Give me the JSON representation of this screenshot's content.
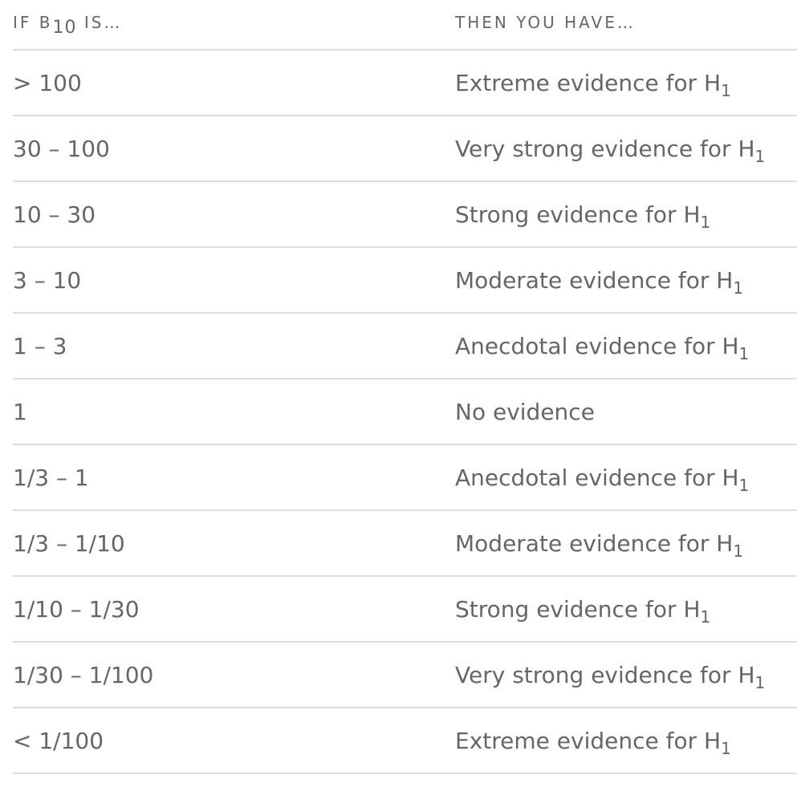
{
  "header": {
    "col1": {
      "prefix": "IF B",
      "sub": "10",
      "suffix": " IS…"
    },
    "col2": "THEN YOU HAVE…"
  },
  "rows": [
    {
      "range": "> 100",
      "evidence": "Extreme evidence for H",
      "sub": "1"
    },
    {
      "range": "30 – 100",
      "evidence": "Very strong evidence for H",
      "sub": "1"
    },
    {
      "range": "10 – 30",
      "evidence": "Strong evidence for H",
      "sub": "1"
    },
    {
      "range": "3 – 10",
      "evidence": "Moderate evidence for H",
      "sub": "1"
    },
    {
      "range": "1 – 3",
      "evidence": "Anecdotal evidence for H",
      "sub": "1"
    },
    {
      "range": "1",
      "evidence": "No evidence",
      "sub": ""
    },
    {
      "range": "1/3 – 1",
      "evidence": "Anecdotal evidence for H",
      "sub": "1"
    },
    {
      "range": "1/3 – 1/10",
      "evidence": "Moderate evidence for H",
      "sub": "1"
    },
    {
      "range": "1/10 – 1/30",
      "evidence": "Strong evidence for H",
      "sub": "1"
    },
    {
      "range": "1/30 – 1/100",
      "evidence": "Very strong evidence for H",
      "sub": "1"
    },
    {
      "range": "< 1/100",
      "evidence": "Extreme evidence for H",
      "sub": "1"
    }
  ]
}
